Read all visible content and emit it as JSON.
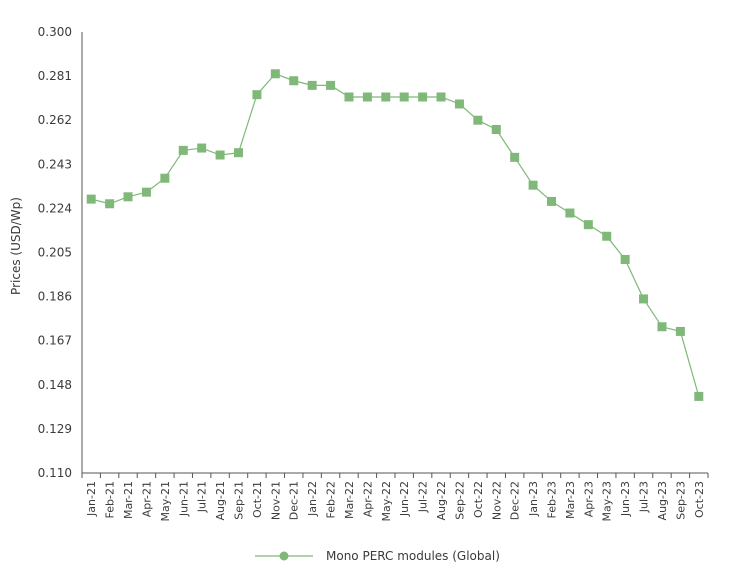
{
  "chart_data": {
    "type": "line",
    "title": "",
    "xlabel": "",
    "ylabel": "Prices (USD/Wp)",
    "ylim": [
      0.11,
      0.3
    ],
    "yticks": [
      "0.300",
      "0.281",
      "0.262",
      "0.243",
      "0.224",
      "0.205",
      "0.186",
      "0.167",
      "0.148",
      "0.129",
      "0.110"
    ],
    "ytick_values": [
      0.3,
      0.281,
      0.262,
      0.243,
      0.224,
      0.205,
      0.186,
      0.167,
      0.148,
      0.129,
      0.11
    ],
    "categories": [
      "Jan-21",
      "Feb-21",
      "Mar-21",
      "Apr-21",
      "May-21",
      "Jun-21",
      "Jul-21",
      "Aug-21",
      "Sep-21",
      "Oct-21",
      "Nov-21",
      "Dec-21",
      "Jan-22",
      "Feb-22",
      "Mar-22",
      "Apr-22",
      "May-22",
      "Jun-22",
      "Jul-22",
      "Aug-22",
      "Sep-22",
      "Oct-22",
      "Nov-22",
      "Dec-22",
      "Jan-23",
      "Feb-23",
      "Mar-23",
      "Apr-23",
      "May-23",
      "Jun-23",
      "Jul-23",
      "Aug-23",
      "Sep-23",
      "Oct-23"
    ],
    "series": [
      {
        "name": "Mono PERC modules (Global)",
        "color": "#7fb878",
        "values": [
          0.228,
          0.226,
          0.229,
          0.231,
          0.237,
          0.249,
          0.25,
          0.247,
          0.248,
          0.273,
          0.282,
          0.279,
          0.277,
          0.277,
          0.272,
          0.272,
          0.272,
          0.272,
          0.272,
          0.272,
          0.269,
          0.262,
          0.258,
          0.246,
          0.234,
          0.227,
          0.222,
          0.217,
          0.212,
          0.202,
          0.185,
          0.173,
          0.171,
          0.143
        ]
      }
    ],
    "grid": false,
    "legend": "bottom-center"
  }
}
